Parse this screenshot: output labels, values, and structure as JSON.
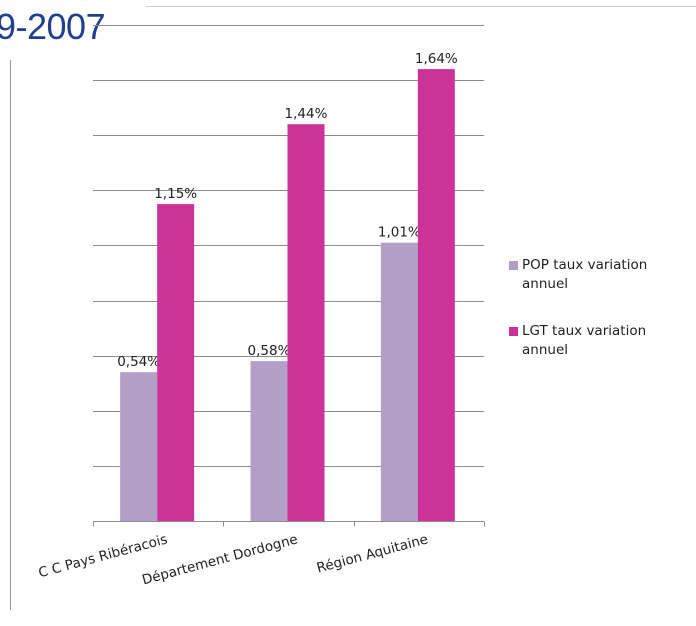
{
  "page": {
    "heading": "9-2007"
  },
  "chart_data": {
    "type": "bar",
    "title": "",
    "xlabel": "",
    "ylabel": "",
    "ylim": [
      0,
      1.8
    ],
    "grid": true,
    "legend_position": "right",
    "categories": [
      "C C Pays Ribéracois",
      "Département Dordogne",
      "Région Aquitaine"
    ],
    "series": [
      {
        "name": "POP taux variation annuel",
        "color": "#b19fc8",
        "values": [
          0.54,
          0.58,
          1.01
        ],
        "labels": [
          "0,54%",
          "0,58%",
          "1,01%"
        ]
      },
      {
        "name": "LGT   taux variation annuel",
        "color": "#cc3399",
        "values": [
          1.15,
          1.44,
          1.64
        ],
        "labels": [
          "1,15%",
          "1,44%",
          "1,64%"
        ]
      }
    ]
  }
}
